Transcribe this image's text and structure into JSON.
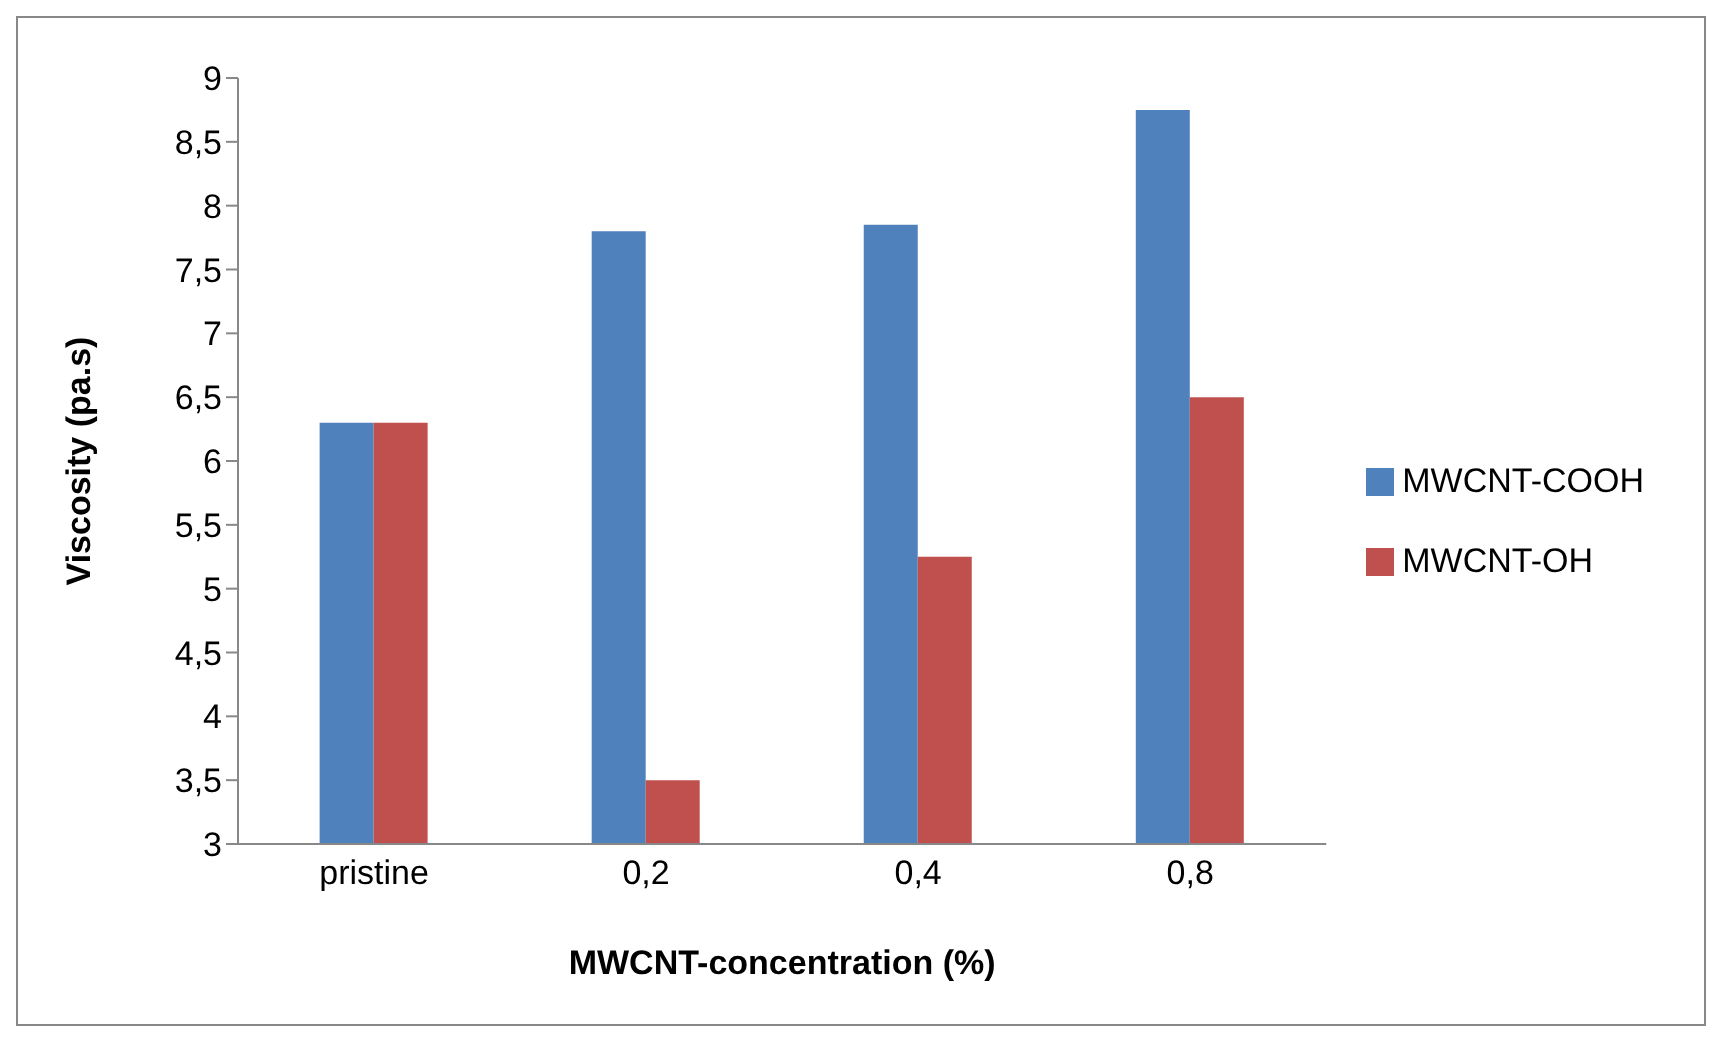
{
  "chart_data": {
    "type": "bar",
    "xlabel": "MWCNT-concentration (%)",
    "ylabel": "Viscosity (pa.s)",
    "categories": [
      "pristine",
      "0,2",
      "0,4",
      "0,8"
    ],
    "series": [
      {
        "name": "MWCNT-COOH",
        "color": "#4f81bd",
        "values": [
          6.3,
          7.8,
          7.85,
          8.75
        ]
      },
      {
        "name": "MWCNT-OH",
        "color": "#c0504d",
        "values": [
          6.3,
          3.5,
          5.25,
          6.5
        ]
      }
    ],
    "ylim": [
      3,
      9
    ],
    "yticks": [
      3,
      {
        "value": 3.5,
        "label": "3,5"
      },
      4,
      {
        "value": 4.5,
        "label": "4,5"
      },
      5,
      {
        "value": 5.5,
        "label": "5,5"
      },
      6,
      {
        "value": 6.5,
        "label": "6,5"
      },
      7,
      {
        "value": 7.5,
        "label": "7,5"
      },
      8,
      {
        "value": 8.5,
        "label": "8,5"
      },
      9
    ],
    "grid": false,
    "legend": "right"
  }
}
